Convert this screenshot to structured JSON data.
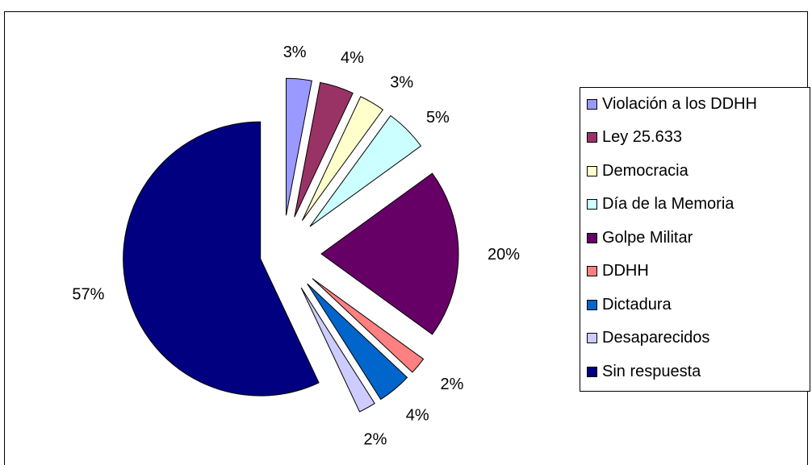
{
  "chart_data": {
    "type": "pie",
    "exploded": true,
    "legend_position": "right",
    "categories": [
      "Violación a los DDHH",
      "Ley 25.633",
      "Democracia",
      "Día de la Memoria",
      "Golpe Militar",
      "DDHH",
      "Dictadura",
      "Desaparecidos",
      "Sin respuesta"
    ],
    "values": [
      3,
      4,
      3,
      5,
      20,
      2,
      4,
      2,
      57
    ],
    "labels": [
      "3%",
      "4%",
      "3%",
      "5%",
      "20%",
      "2%",
      "4%",
      "2%",
      "57%"
    ],
    "colors": [
      "#9999FF",
      "#993366",
      "#FFFFCC",
      "#CCFFFF",
      "#660066",
      "#FF8080",
      "#0066CC",
      "#CCCCFF",
      "#000080"
    ]
  }
}
